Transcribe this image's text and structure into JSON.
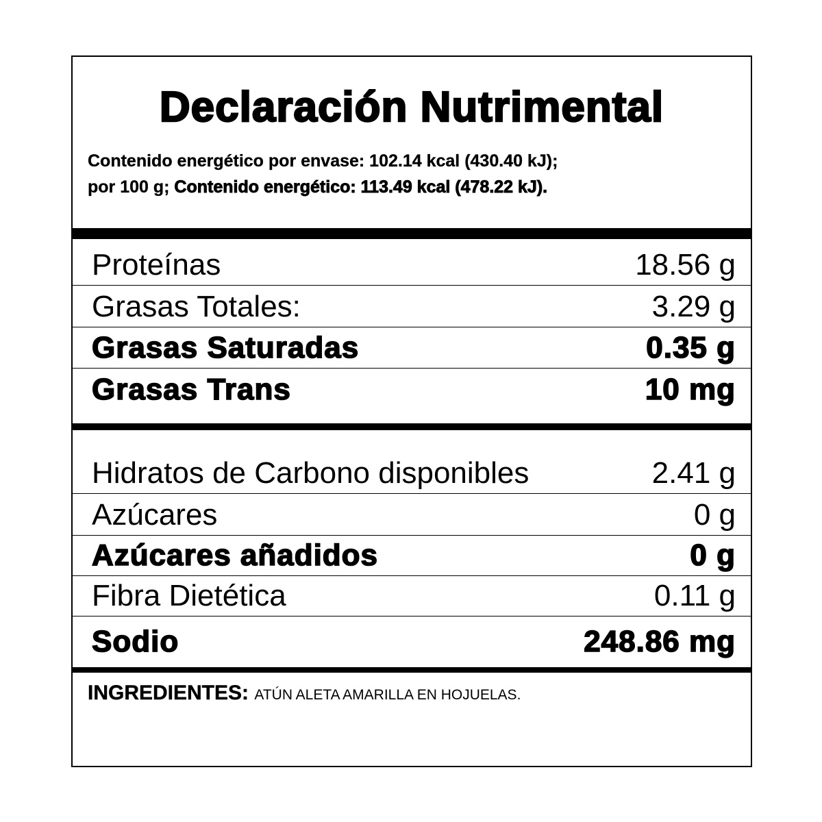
{
  "title": "Declaración Nutrimental",
  "energy": {
    "line1": "Contenido energético por envase: 102.14 kcal (430.40 kJ);",
    "line2_prefix": "por 100 g; ",
    "line2_bold": "Contenido energético: 113.49 kcal (478.22 kJ)."
  },
  "section1": [
    {
      "label": "Proteínas",
      "value": "18.56 g",
      "bold": false
    },
    {
      "label": "Grasas Totales:",
      "value": "3.29 g",
      "bold": false
    },
    {
      "label": "Grasas Saturadas",
      "value": "0.35 g",
      "bold": true
    },
    {
      "label": "Grasas Trans",
      "value": "10 mg",
      "bold": true
    }
  ],
  "section2": [
    {
      "label": "Hidratos de Carbono disponibles",
      "value": "2.41 g",
      "bold": false
    },
    {
      "label": "Azúcares",
      "value": "0 g",
      "bold": false
    },
    {
      "label": "Azúcares añadidos",
      "value": "0 g",
      "bold": true
    },
    {
      "label": "Fibra Dietética",
      "value": "0.11 g",
      "bold": false
    },
    {
      "label": "Sodio",
      "value": "248.86 mg",
      "bold": true
    }
  ],
  "ingredients": {
    "label": "INGREDIENTES:",
    "value": "ATÚN ALETA AMARILLA EN HOJUELAS."
  }
}
